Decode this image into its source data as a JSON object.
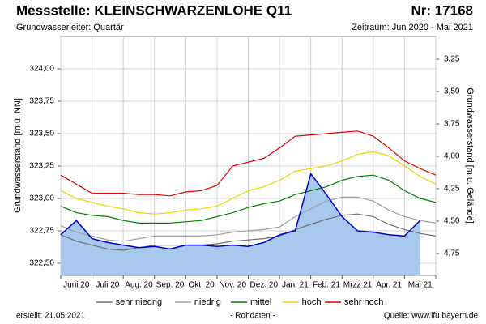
{
  "chart_data": {
    "type": "line",
    "title": "Messstelle: KLEINSCHWARZENLOHE Q11",
    "number": "Nr: 17168",
    "subtitle": "Grundwasserleiter: Quartär",
    "period": "Zeitraum: Jun 2020 - Mai 2021",
    "ylabel": "Grundwasserstand [m ü. NN]",
    "y2label": "Grundwasserstand [m u. Gelände]",
    "created": "erstellt:  21.05.2021",
    "note": "- Rohdaten -",
    "source": "Quelle: www.lfu.bayern.de",
    "grid": true,
    "categories": [
      null,
      "Juni 20",
      null,
      "Juli 20",
      null,
      "Aug. 20",
      null,
      "Sep. 20",
      null,
      "Okt. 20",
      null,
      "Nov. 20",
      null,
      "Dez. 20",
      null,
      "Jan. 21",
      null,
      "Feb. 21",
      null,
      "Mrzz 21",
      null,
      "Apr. 21",
      null,
      "Mai 21",
      null
    ],
    "ylim": [
      322.406,
      324.25
    ],
    "yticks": [
      {
        "value": 322.5,
        "label": "322,50"
      },
      {
        "value": 322.75,
        "label": "322,75"
      },
      {
        "value": 323,
        "label": "323,00"
      },
      {
        "value": 323.25,
        "label": "323,25"
      },
      {
        "value": 323.5,
        "label": "323,50"
      },
      {
        "value": 323.75,
        "label": "323,75"
      },
      {
        "value": 324,
        "label": "324,00"
      }
    ],
    "y2lim": [
      4.919,
      3.075
    ],
    "y2ticks": [
      {
        "value": 3.25,
        "label": "3,25"
      },
      {
        "value": 3.5,
        "label": "3,50"
      },
      {
        "value": 3.75,
        "label": "3,75"
      },
      {
        "value": 4,
        "label": "4,00"
      },
      {
        "value": 4.25,
        "label": "4,25"
      },
      {
        "value": 4.5,
        "label": "4,50"
      },
      {
        "value": 4.75,
        "label": "4,75"
      }
    ],
    "measured": {
      "color": "#0000cc",
      "fill": "#a8c8ee",
      "values": [
        322.72,
        322.83,
        322.69,
        322.66,
        322.64,
        322.62,
        322.63,
        322.61,
        322.64,
        322.64,
        322.63,
        322.64,
        322.63,
        322.66,
        322.72,
        322.75,
        323.19,
        323.03,
        322.86,
        322.75,
        322.74,
        322.72,
        322.71,
        322.83,
        null
      ]
    },
    "series": [
      {
        "name": "sehr niedrig",
        "color": "#707070",
        "values": [
          322.72,
          322.67,
          322.64,
          322.61,
          322.6,
          322.62,
          322.64,
          322.64,
          322.64,
          322.64,
          322.65,
          322.67,
          322.68,
          322.69,
          322.71,
          322.76,
          322.8,
          322.84,
          322.87,
          322.88,
          322.86,
          322.8,
          322.76,
          322.73,
          322.71
        ]
      },
      {
        "name": "niedrig",
        "color": "#a0a0a0",
        "values": [
          322.79,
          322.74,
          322.71,
          322.68,
          322.67,
          322.69,
          322.71,
          322.71,
          322.71,
          322.71,
          322.72,
          322.74,
          322.75,
          322.76,
          322.78,
          322.86,
          322.92,
          322.98,
          323.01,
          323.01,
          322.98,
          322.91,
          322.86,
          322.83,
          322.81
        ]
      },
      {
        "name": "mittel",
        "color": "#008000",
        "values": [
          322.94,
          322.89,
          322.87,
          322.86,
          322.83,
          322.81,
          322.81,
          322.81,
          322.82,
          322.83,
          322.86,
          322.89,
          322.93,
          322.96,
          322.98,
          323.03,
          323.06,
          323.09,
          323.14,
          323.17,
          323.18,
          323.14,
          323.06,
          323.0,
          322.97
        ]
      },
      {
        "name": "hoch",
        "color": "#e8d800",
        "values": [
          323.06,
          323.0,
          322.97,
          322.94,
          322.92,
          322.89,
          322.88,
          322.89,
          322.91,
          322.92,
          322.94,
          323.0,
          323.06,
          323.09,
          323.14,
          323.21,
          323.23,
          323.25,
          323.29,
          323.34,
          323.36,
          323.33,
          323.25,
          323.17,
          323.11
        ]
      },
      {
        "name": "sehr hoch",
        "color": "#e00000",
        "values": [
          323.18,
          323.11,
          323.04,
          323.04,
          323.04,
          323.03,
          323.03,
          323.02,
          323.05,
          323.06,
          323.1,
          323.25,
          323.28,
          323.31,
          323.39,
          323.48,
          323.49,
          323.5,
          323.51,
          323.52,
          323.48,
          323.39,
          323.29,
          323.23,
          323.18
        ]
      }
    ]
  }
}
